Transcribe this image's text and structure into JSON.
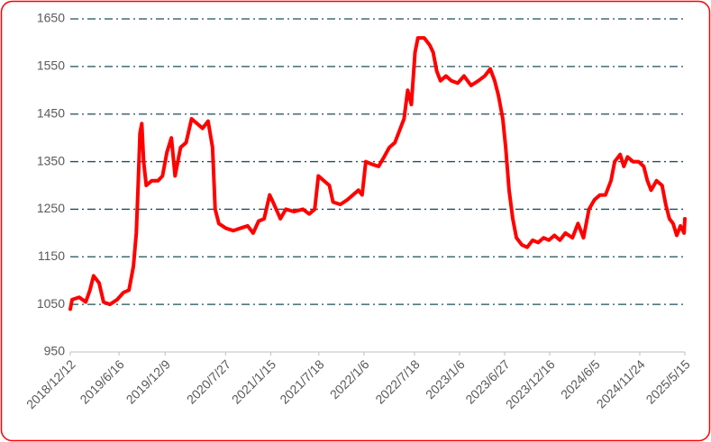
{
  "chart_data": {
    "type": "line",
    "x": [
      "2018/12/12",
      "2018/12/19",
      "2019/1/15",
      "2019/2/9",
      "2019/2/25",
      "2019/3/11",
      "2019/4/1",
      "2019/4/18",
      "2019/5/12",
      "2019/6/9",
      "2019/7/3",
      "2019/7/24",
      "2019/8/10",
      "2019/8/21",
      "2019/8/28",
      "2019/9/4",
      "2019/9/11",
      "2019/9/18",
      "2019/9/28",
      "2019/10/19",
      "2019/11/12",
      "2019/11/29",
      "2019/12/16",
      "2020/1/2",
      "2020/1/16",
      "2020/2/6",
      "2020/2/27",
      "2020/3/19",
      "2020/4/9",
      "2020/4/30",
      "2020/5/21",
      "2020/6/7",
      "2020/6/17",
      "2020/7/1",
      "2020/7/28",
      "2020/8/25",
      "2020/9/21",
      "2020/10/19",
      "2020/11/9",
      "2020/11/30",
      "2020/12/21",
      "2021/1/11",
      "2021/1/28",
      "2021/2/21",
      "2021/3/14",
      "2021/4/14",
      "2021/5/18",
      "2021/6/11",
      "2021/7/2",
      "2021/7/16",
      "2021/8/6",
      "2021/8/27",
      "2021/9/10",
      "2021/10/8",
      "2021/11/4",
      "2021/11/25",
      "2021/12/16",
      "2021/12/30",
      "2022/1/13",
      "2022/2/3",
      "2022/3/3",
      "2022/3/24",
      "2022/4/13",
      "2022/5/4",
      "2022/5/25",
      "2022/6/8",
      "2022/6/22",
      "2022/7/6",
      "2022/7/20",
      "2022/7/31",
      "2022/8/24",
      "2022/9/14",
      "2022/9/27",
      "2022/10/11",
      "2022/10/25",
      "2022/11/15",
      "2022/12/6",
      "2022/12/30",
      "2023/1/23",
      "2023/2/19",
      "2023/3/19",
      "2023/4/12",
      "2023/5/3",
      "2023/5/20",
      "2023/6/3",
      "2023/6/20",
      "2023/7/1",
      "2023/7/14",
      "2023/7/28",
      "2023/8/11",
      "2023/9/1",
      "2023/9/21",
      "2023/10/12",
      "2023/11/2",
      "2023/11/23",
      "2023/12/13",
      "2024/1/3",
      "2024/1/24",
      "2024/2/14",
      "2024/3/12",
      "2024/4/2",
      "2024/4/23",
      "2024/5/14",
      "2024/6/4",
      "2024/6/25",
      "2024/7/16",
      "2024/8/6",
      "2024/8/20",
      "2024/9/10",
      "2024/9/24",
      "2024/10/8",
      "2024/10/29",
      "2024/11/19",
      "2024/12/9",
      "2024/12/23",
      "2025/1/6",
      "2025/1/27",
      "2025/2/17",
      "2025/3/3",
      "2025/3/17",
      "2025/3/31",
      "2025/4/14",
      "2025/4/28",
      "2025/5/12",
      "2025/5/15"
    ],
    "series": [
      {
        "color": "#ff0000",
        "values": [
          1040,
          1060,
          1065,
          1055,
          1080,
          1110,
          1095,
          1055,
          1050,
          1060,
          1075,
          1080,
          1130,
          1200,
          1300,
          1410,
          1430,
          1350,
          1300,
          1310,
          1310,
          1320,
          1370,
          1400,
          1320,
          1380,
          1390,
          1440,
          1430,
          1420,
          1435,
          1380,
          1250,
          1220,
          1210,
          1205,
          1210,
          1215,
          1200,
          1225,
          1230,
          1280,
          1260,
          1230,
          1250,
          1245,
          1250,
          1240,
          1250,
          1320,
          1310,
          1300,
          1265,
          1260,
          1270,
          1280,
          1290,
          1280,
          1350,
          1345,
          1340,
          1360,
          1380,
          1390,
          1420,
          1440,
          1500,
          1470,
          1580,
          1610,
          1610,
          1595,
          1580,
          1540,
          1520,
          1530,
          1520,
          1515,
          1530,
          1510,
          1520,
          1530,
          1545,
          1520,
          1490,
          1440,
          1380,
          1290,
          1230,
          1190,
          1175,
          1170,
          1185,
          1180,
          1190,
          1185,
          1195,
          1185,
          1200,
          1190,
          1220,
          1190,
          1250,
          1270,
          1280,
          1280,
          1310,
          1350,
          1365,
          1340,
          1360,
          1350,
          1350,
          1340,
          1310,
          1290,
          1310,
          1300,
          1260,
          1230,
          1220,
          1195,
          1215,
          1200,
          1230
        ]
      }
    ],
    "xlim": [
      "2018/12/12",
      "2025/5/15"
    ],
    "xticks": [
      "2018/12/12",
      "2019/6/16",
      "2019/12/9",
      "2020/7/27",
      "2021/1/15",
      "2021/7/18",
      "2022/1/6",
      "2022/7/18",
      "2023/1/6",
      "2023/6/27",
      "2023/12/16",
      "2024/6/5",
      "2024/11/24",
      "2025/5/15"
    ],
    "ylim": [
      950,
      1650
    ],
    "yticks": [
      950,
      1050,
      1150,
      1250,
      1350,
      1450,
      1550,
      1650
    ],
    "grid": true
  }
}
